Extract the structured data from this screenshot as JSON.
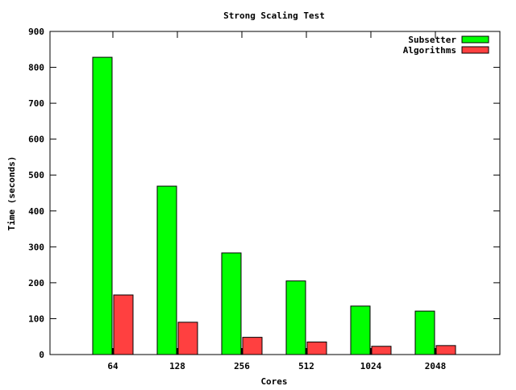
{
  "chart_data": {
    "type": "bar",
    "title": "Strong Scaling Test",
    "xlabel": "Cores",
    "ylabel": "Time (seconds)",
    "categories": [
      "64",
      "128",
      "256",
      "512",
      "1024",
      "2048"
    ],
    "series": [
      {
        "name": "Subsetter",
        "color": "#00ff00",
        "values": [
          828,
          469,
          283,
          205,
          135,
          121
        ]
      },
      {
        "name": "Algorithms",
        "color": "#ff4040",
        "values": [
          166,
          90,
          48,
          35,
          23,
          25
        ]
      }
    ],
    "ylim": [
      0,
      900
    ],
    "yticks": [
      0,
      100,
      200,
      300,
      400,
      500,
      600,
      700,
      800,
      900
    ],
    "grid": false,
    "legend": "top-right"
  }
}
